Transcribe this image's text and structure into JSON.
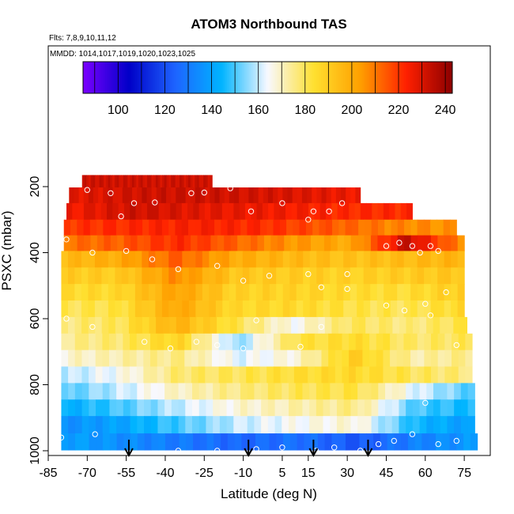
{
  "chart_data": {
    "type": "heatmap",
    "title": "ATOM3 Northbound TAS",
    "flights_note": "Flts: 7,8,9,10,11,12",
    "dates_note": "MMDD: 1014,1017,1019,1020,1023,1025",
    "xlabel": "Latitude (deg N)",
    "ylabel": "PSXC (mbar)",
    "xlim": [
      -85,
      85
    ],
    "ylim": [
      1000,
      80
    ],
    "x_ticks": [
      -85,
      -70,
      -55,
      -40,
      -25,
      -10,
      5,
      15,
      30,
      45,
      60,
      75
    ],
    "y_ticks": [
      200,
      400,
      600,
      800,
      1000
    ],
    "colorbar": {
      "range": [
        85,
        243
      ],
      "ticks": [
        100,
        120,
        140,
        160,
        180,
        200,
        220,
        240
      ],
      "colors": [
        "#7a00ff",
        "#0000c8",
        "#1e64ff",
        "#00b4ff",
        "#f8f8ff",
        "#ffe030",
        "#ffa000",
        "#ff2000",
        "#8c0000"
      ]
    },
    "pressure_levels": [
      180,
      225,
      275,
      325,
      370,
      420,
      470,
      520,
      570,
      620,
      670,
      720,
      770,
      820,
      870,
      920,
      975
    ],
    "bands": [
      {
        "p": 180,
        "lat": [
          -72,
          -22
        ],
        "tas": [
          232,
          232
        ]
      },
      {
        "p": 225,
        "lat": [
          -77,
          35
        ],
        "tas": [
          228,
          232,
          232,
          230,
          226
        ]
      },
      {
        "p": 275,
        "lat": [
          -78,
          55
        ],
        "tas": [
          225,
          232,
          228,
          226,
          222,
          222
        ]
      },
      {
        "p": 325,
        "lat": [
          -79,
          72
        ],
        "tas": [
          220,
          222,
          224,
          222,
          215,
          208,
          205
        ]
      },
      {
        "p": 370,
        "lat": [
          -79,
          75
        ],
        "tas": [
          210,
          214,
          222,
          213,
          205,
          200,
          234,
          205
        ]
      },
      {
        "p": 420,
        "lat": [
          -80,
          75
        ],
        "tas": [
          195,
          200,
          214,
          200,
          196,
          193,
          195,
          198
        ]
      },
      {
        "p": 470,
        "lat": [
          -80,
          75
        ],
        "tas": [
          190,
          190,
          207,
          192,
          190,
          188,
          190,
          192
        ]
      },
      {
        "p": 520,
        "lat": [
          -80,
          75
        ],
        "tas": [
          185,
          186,
          203,
          188,
          188,
          185,
          184,
          190
        ]
      },
      {
        "p": 570,
        "lat": [
          -80,
          75
        ],
        "tas": [
          180,
          182,
          202,
          186,
          186,
          182,
          180,
          186
        ]
      },
      {
        "p": 620,
        "lat": [
          -80,
          76
        ],
        "tas": [
          176,
          180,
          198,
          182,
          165,
          180,
          176,
          182
        ]
      },
      {
        "p": 670,
        "lat": [
          -80,
          78
        ],
        "tas": [
          174,
          178,
          188,
          155,
          182,
          185,
          178,
          180
        ]
      },
      {
        "p": 720,
        "lat": [
          -80,
          78
        ],
        "tas": [
          168,
          172,
          176,
          162,
          168,
          190,
          172,
          176
        ]
      },
      {
        "p": 770,
        "lat": [
          -80,
          78
        ],
        "tas": [
          158,
          165,
          178,
          180,
          184,
          186,
          180,
          176
        ]
      },
      {
        "p": 820,
        "lat": [
          -80,
          79
        ],
        "tas": [
          150,
          160,
          170,
          176,
          180,
          182,
          162,
          150
        ]
      },
      {
        "p": 870,
        "lat": [
          -80,
          79
        ],
        "tas": [
          142,
          150,
          160,
          168,
          172,
          176,
          150,
          145
        ]
      },
      {
        "p": 920,
        "lat": [
          -80,
          79
        ],
        "tas": [
          135,
          140,
          150,
          160,
          165,
          168,
          145,
          138
        ]
      },
      {
        "p": 975,
        "lat": [
          -80,
          80
        ],
        "tas": [
          140,
          135,
          130,
          125,
          128,
          122,
          132,
          138
        ]
      }
    ],
    "flight_points": [
      [
        -70,
        210
      ],
      [
        -61,
        220
      ],
      [
        -57,
        290
      ],
      [
        -52,
        250
      ],
      [
        -44,
        248
      ],
      [
        -30,
        220
      ],
      [
        -25,
        218
      ],
      [
        -15,
        205
      ],
      [
        -7,
        275
      ],
      [
        5,
        250
      ],
      [
        15,
        300
      ],
      [
        17,
        275
      ],
      [
        23,
        275
      ],
      [
        28,
        250
      ],
      [
        -78,
        360
      ],
      [
        -68,
        400
      ],
      [
        -55,
        395
      ],
      [
        -45,
        420
      ],
      [
        -35,
        450
      ],
      [
        -20,
        440
      ],
      [
        -10,
        485
      ],
      [
        0,
        470
      ],
      [
        15,
        465
      ],
      [
        20,
        505
      ],
      [
        30,
        465
      ],
      [
        45,
        380
      ],
      [
        50,
        370
      ],
      [
        55,
        380
      ],
      [
        58,
        400
      ],
      [
        62,
        380
      ],
      [
        65,
        395
      ],
      [
        -78,
        600
      ],
      [
        -68,
        625
      ],
      [
        -48,
        670
      ],
      [
        -38,
        690
      ],
      [
        -28,
        670
      ],
      [
        -20,
        680
      ],
      [
        -10,
        690
      ],
      [
        -5,
        605
      ],
      [
        12,
        685
      ],
      [
        20,
        625
      ],
      [
        30,
        510
      ],
      [
        45,
        560
      ],
      [
        52,
        575
      ],
      [
        60,
        555
      ],
      [
        62,
        590
      ],
      [
        68,
        520
      ],
      [
        72,
        680
      ],
      [
        -80,
        960
      ],
      [
        -67,
        950
      ],
      [
        -35,
        1000
      ],
      [
        -20,
        1000
      ],
      [
        -5,
        995
      ],
      [
        5,
        990
      ],
      [
        18,
        1000
      ],
      [
        25,
        990
      ],
      [
        35,
        1000
      ],
      [
        42,
        980
      ],
      [
        48,
        970
      ],
      [
        55,
        950
      ],
      [
        60,
        855
      ],
      [
        65,
        980
      ],
      [
        72,
        970
      ]
    ],
    "flight_arrows_lat": [
      -54,
      -8,
      17,
      38
    ]
  }
}
